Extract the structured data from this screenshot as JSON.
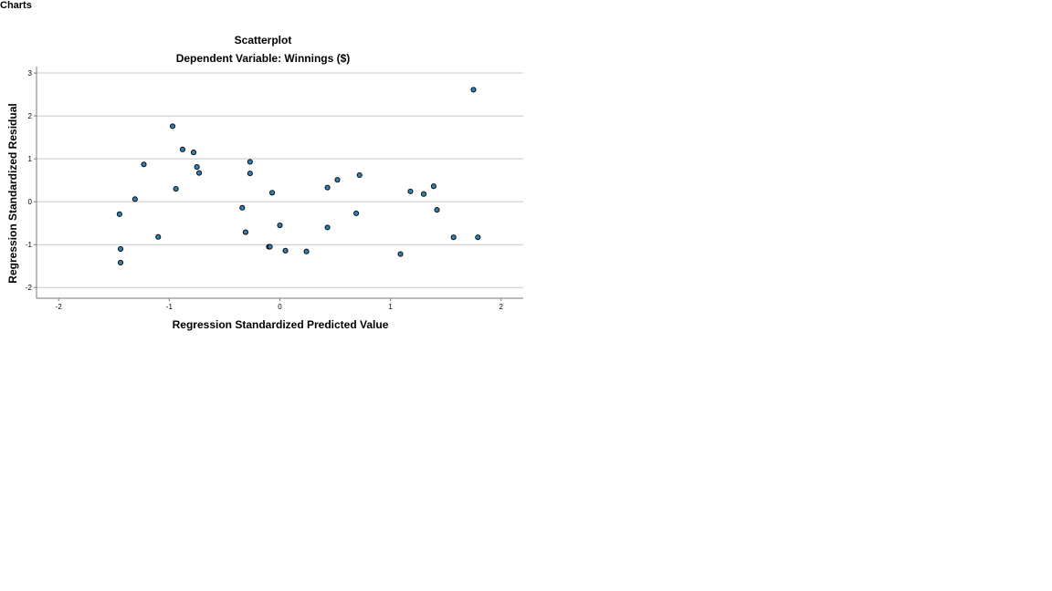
{
  "page": {
    "heading": "Charts"
  },
  "chart_data": {
    "type": "scatter",
    "title": "Scatterplot",
    "subtitle": "Dependent Variable: Winnings ($)",
    "xlabel": "Regression Standardized Predicted Value",
    "ylabel": "Regression Standardized Residual",
    "xlim": [
      -2.2,
      2.2
    ],
    "ylim": [
      -2.25,
      3.15
    ],
    "x_ticks": [
      -2,
      -1,
      0,
      1,
      2
    ],
    "y_ticks": [
      3,
      2,
      1,
      0,
      -1,
      -2
    ],
    "grid": "horizontal",
    "marker_fill": "#2f80b4",
    "marker_stroke": "#000000",
    "gridline_color": "#c8c8c8",
    "points": [
      {
        "x": -1.45,
        "y": -0.29
      },
      {
        "x": -1.44,
        "y": -1.1
      },
      {
        "x": -1.44,
        "y": -1.42
      },
      {
        "x": -1.31,
        "y": 0.06
      },
      {
        "x": -1.23,
        "y": 0.87
      },
      {
        "x": -1.1,
        "y": -0.82
      },
      {
        "x": -0.97,
        "y": 1.76
      },
      {
        "x": -0.94,
        "y": 0.3
      },
      {
        "x": -0.88,
        "y": 1.22
      },
      {
        "x": -0.78,
        "y": 1.15
      },
      {
        "x": -0.75,
        "y": 0.81
      },
      {
        "x": -0.73,
        "y": 0.67
      },
      {
        "x": -0.34,
        "y": -0.14
      },
      {
        "x": -0.31,
        "y": -0.71
      },
      {
        "x": -0.27,
        "y": 0.93
      },
      {
        "x": -0.27,
        "y": 0.66
      },
      {
        "x": -0.1,
        "y": -1.05
      },
      {
        "x": -0.09,
        "y": -1.05
      },
      {
        "x": -0.07,
        "y": 0.21
      },
      {
        "x": 0.0,
        "y": -0.55
      },
      {
        "x": 0.05,
        "y": -1.14
      },
      {
        "x": 0.24,
        "y": -1.16
      },
      {
        "x": 0.43,
        "y": 0.33
      },
      {
        "x": 0.43,
        "y": -0.6
      },
      {
        "x": 0.52,
        "y": 0.51
      },
      {
        "x": 0.69,
        "y": -0.27
      },
      {
        "x": 0.72,
        "y": 0.62
      },
      {
        "x": 1.09,
        "y": -1.22
      },
      {
        "x": 1.18,
        "y": 0.24
      },
      {
        "x": 1.3,
        "y": 0.18
      },
      {
        "x": 1.39,
        "y": 0.36
      },
      {
        "x": 1.42,
        "y": -0.19
      },
      {
        "x": 1.57,
        "y": -0.83
      },
      {
        "x": 1.75,
        "y": 2.61
      },
      {
        "x": 1.79,
        "y": -0.83
      }
    ]
  }
}
